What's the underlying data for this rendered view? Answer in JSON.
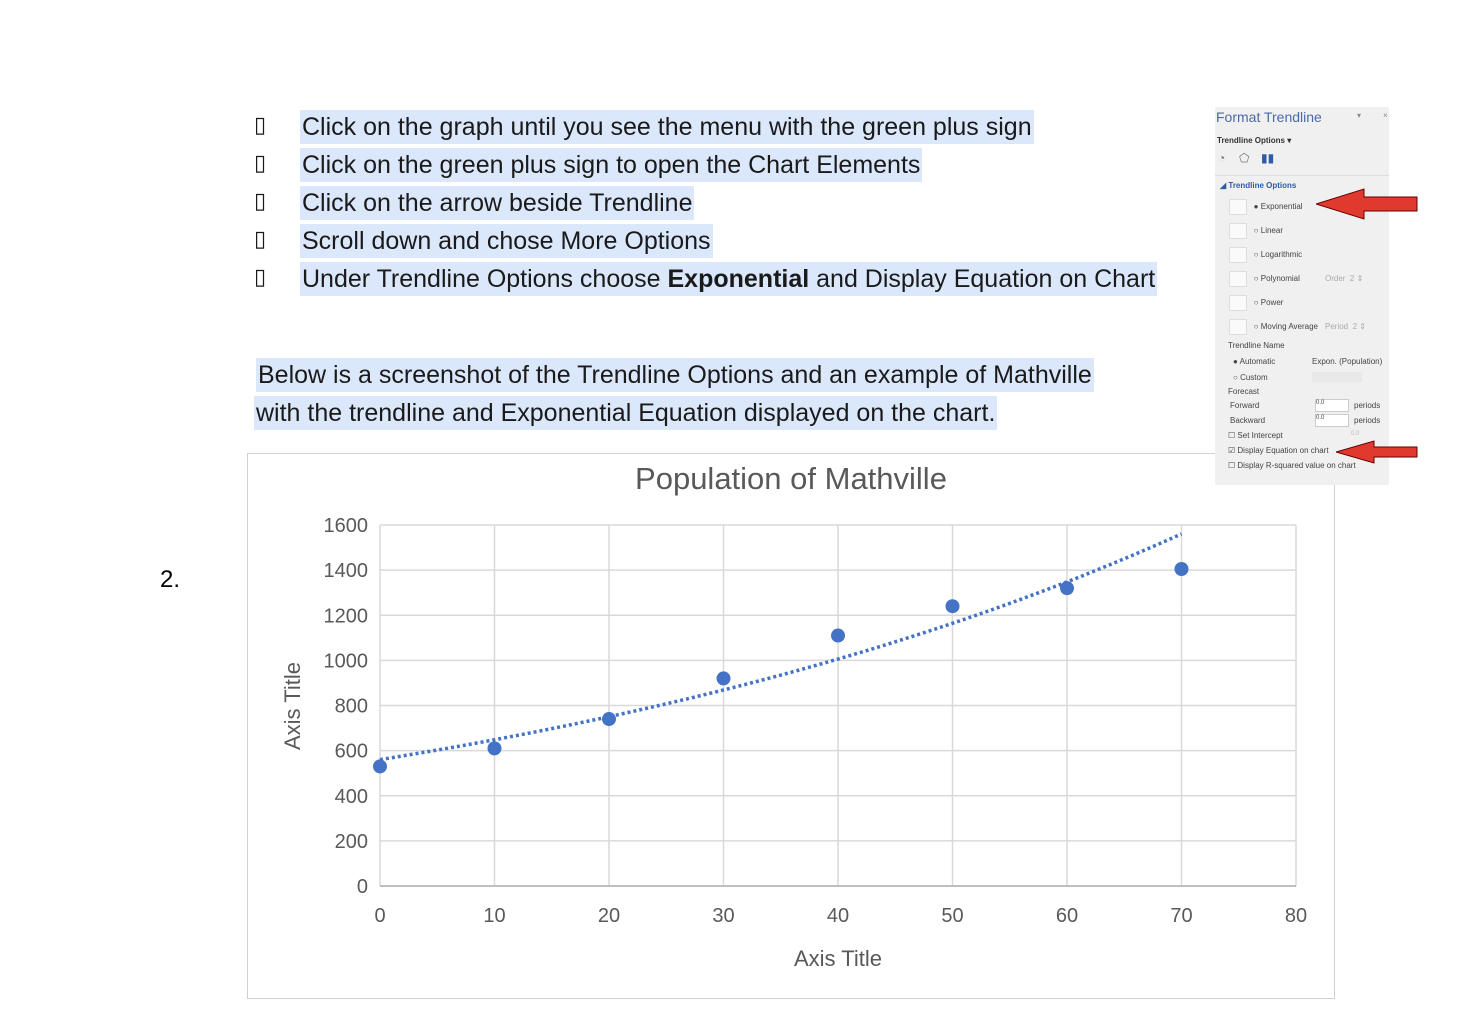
{
  "instructions": {
    "bullet": "▯",
    "steps": [
      "Click on the graph until you see the menu with the green plus sign",
      "Click on the green plus sign to open the Chart Elements",
      "Click on the arrow beside Trendline",
      "Scroll down and chose More Options"
    ],
    "last_step": {
      "pre": "Under Trendline Options choose ",
      "bold": "Exponential",
      "post": " and Display Equation on Chart"
    },
    "paragraph_line1": "Below is a screenshot of the Trendline Options and an example of Mathville",
    "paragraph_line2": "with the trendline and Exponential Equation displayed on the chart.",
    "item_number": "2."
  },
  "format_panel": {
    "title": "Format Trendline",
    "section_dropdown": "Trendline Options ▾",
    "group_title": "Trendline Options",
    "types": [
      {
        "label": "Exponential",
        "selected": true
      },
      {
        "label": "Linear",
        "selected": false
      },
      {
        "label": "Logarithmic",
        "selected": false
      },
      {
        "label": "Polynomial",
        "selected": false,
        "extra": "Order",
        "extra_value": "2"
      },
      {
        "label": "Power",
        "selected": false
      },
      {
        "label": "Moving Average",
        "selected": false,
        "extra": "Period",
        "extra_value": "2"
      }
    ],
    "name_label": "Trendline Name",
    "automatic": "Automatic",
    "automatic_value": "Expon. (Population)",
    "custom": "Custom",
    "forecast": "Forecast",
    "forward": "Forward",
    "forward_value": "0.0",
    "backward": "Backward",
    "backward_value": "0.0",
    "periods": "periods",
    "set_intercept": "Set Intercept",
    "intercept_value": "0.0",
    "display_equation": "Display Equation on chart",
    "display_equation_checked": true,
    "display_r2": "Display R-squared value on chart",
    "display_r2_checked": false,
    "arrow_color": "#e03a2f"
  },
  "chart_data": {
    "type": "scatter",
    "title": "Population of Mathville",
    "xlabel": "Axis Title",
    "ylabel": "Axis Title",
    "xlim": [
      0,
      80
    ],
    "ylim": [
      0,
      1600
    ],
    "xticks": [
      0,
      10,
      20,
      30,
      40,
      50,
      60,
      70,
      80
    ],
    "yticks": [
      0,
      200,
      400,
      600,
      800,
      1000,
      1200,
      1400,
      1600
    ],
    "grid": true,
    "points": {
      "x": [
        0,
        10,
        20,
        30,
        40,
        50,
        60,
        70
      ],
      "y": [
        530,
        610,
        740,
        920,
        1110,
        1240,
        1320,
        1405
      ]
    },
    "trendline": {
      "type": "exponential",
      "a": 560,
      "b": 0.01464,
      "x_range": [
        0,
        70
      ],
      "style": "dotted"
    },
    "color": "#4472c4"
  }
}
